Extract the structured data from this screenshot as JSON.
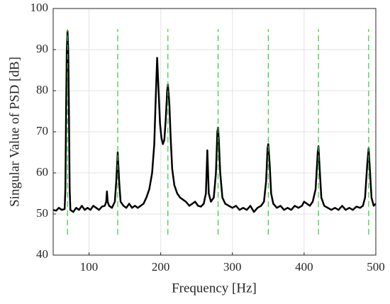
{
  "chart_data": {
    "type": "line",
    "xlabel": "Frequency [Hz]",
    "ylabel": "Singular Value of PSD [dB]",
    "xlim": [
      50,
      500
    ],
    "xticks": [
      100,
      200,
      300,
      400,
      500
    ],
    "ylim": [
      40,
      100
    ],
    "yticks": [
      40,
      50,
      60,
      70,
      80,
      90,
      100
    ],
    "grid": true,
    "series": [
      {
        "color": "#000000",
        "x": [
          50,
          54,
          58,
          62,
          66,
          67,
          68,
          69,
          70,
          71,
          72,
          73,
          74,
          78,
          82,
          86,
          90,
          94,
          98,
          102,
          106,
          110,
          114,
          118,
          122,
          124,
          125,
          126,
          128,
          132,
          136,
          138,
          140,
          142,
          144,
          148,
          152,
          156,
          160,
          164,
          168,
          172,
          176,
          180,
          184,
          188,
          191,
          193,
          195,
          197,
          199,
          201,
          203,
          205,
          207,
          209,
          210,
          212,
          214,
          216,
          219,
          223,
          227,
          231,
          235,
          240,
          244,
          248,
          252,
          256,
          260,
          263,
          265,
          267,
          270,
          274,
          277,
          279,
          280,
          281,
          283,
          286,
          290,
          295,
          300,
          305,
          310,
          315,
          320,
          325,
          330,
          335,
          340,
          344,
          347,
          349,
          350,
          352,
          354,
          357,
          362,
          367,
          372,
          377,
          382,
          387,
          392,
          397,
          400,
          404,
          408,
          412,
          416,
          419,
          420,
          422,
          424,
          428,
          433,
          438,
          443,
          448,
          453,
          458,
          463,
          468,
          473,
          478,
          482,
          485,
          488,
          490,
          492,
          494,
          497,
          500
        ],
        "values": [
          51,
          50.8,
          51.5,
          51,
          51.2,
          56,
          75,
          90,
          94.5,
          90,
          75,
          56,
          51,
          50.5,
          51.5,
          51,
          52,
          51,
          51.5,
          51,
          52,
          51.5,
          51,
          51.8,
          52,
          53,
          55.5,
          53,
          52,
          51.5,
          53,
          58,
          65,
          58,
          53,
          52,
          51.5,
          52.5,
          51.5,
          52,
          51.5,
          52,
          52.5,
          54,
          56,
          60,
          67,
          78,
          88,
          80,
          72,
          68.5,
          67,
          68,
          73,
          80,
          81.5,
          77,
          68,
          61,
          57,
          55,
          54,
          53.5,
          53,
          52,
          52.5,
          53,
          52,
          51.8,
          52.5,
          55,
          65.5,
          55,
          53,
          54,
          60,
          70,
          71,
          68,
          60,
          54,
          52.5,
          52,
          51.5,
          52,
          51,
          51.5,
          51,
          52,
          50.5,
          51.5,
          52,
          53,
          58,
          66,
          67,
          62,
          55,
          52.5,
          51.5,
          52,
          51,
          51.5,
          51,
          52,
          51.5,
          52,
          53,
          52.5,
          52,
          53,
          56,
          65,
          66.5,
          60,
          54,
          52,
          51.5,
          51,
          51.5,
          51,
          52,
          51,
          51.5,
          51,
          51.8,
          51.5,
          52,
          54,
          62,
          66,
          60,
          54,
          52,
          52.5
        ]
      }
    ],
    "vlines": [
      70,
      140,
      210,
      280,
      350,
      420,
      490
    ],
    "vline_color": "#33cc33",
    "vline_ylim": [
      45,
      95
    ]
  }
}
